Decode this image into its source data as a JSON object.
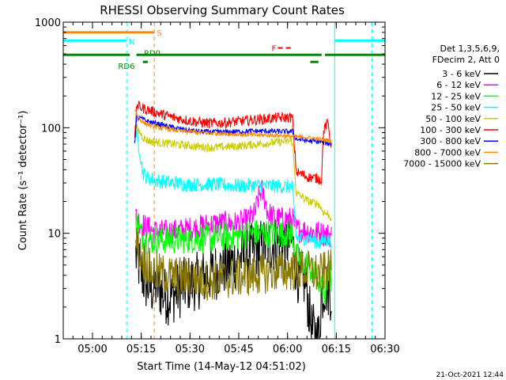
{
  "chart_data": {
    "type": "line",
    "title": "RHESSI Observing Summary Count Rates",
    "xlabel": "Start Time (14-May-12 04:51:02)",
    "ylabel": "Count Rate (s⁻¹ detector⁻¹)",
    "y_scale": "log",
    "ylim": [
      1,
      1000
    ],
    "xlim_minutes_after_0451": [
      0,
      99
    ],
    "y_ticks": [
      {
        "value": 1,
        "label": "1"
      },
      {
        "value": 10,
        "label": "10"
      },
      {
        "value": 100,
        "label": "100"
      },
      {
        "value": 1000,
        "label": "1000"
      }
    ],
    "x_ticks": [
      {
        "t": 9,
        "label": "05:00"
      },
      {
        "t": 24,
        "label": "05:15"
      },
      {
        "t": 39,
        "label": "05:30"
      },
      {
        "t": 54,
        "label": "05:45"
      },
      {
        "t": 69,
        "label": "06:00"
      },
      {
        "t": 84,
        "label": "06:15"
      },
      {
        "t": 99,
        "label": "06:30"
      }
    ],
    "legend": {
      "header": [
        "Det 1,3,5,6,9,",
        "FDecim 2, Att 0"
      ],
      "placement": "right",
      "entries": [
        {
          "label": "3 - 6 keV",
          "color": "#000000"
        },
        {
          "label": "6 - 12 keV",
          "color": "#ff00ff"
        },
        {
          "label": "12 - 25 keV",
          "color": "#00ff00"
        },
        {
          "label": "25 - 50 keV",
          "color": "#00ffff"
        },
        {
          "label": "50 - 100 keV",
          "color": "#cccc00"
        },
        {
          "label": "100 - 300 keV",
          "color": "#ff0000"
        },
        {
          "label": "300 - 800 keV",
          "color": "#0000ff"
        },
        {
          "label": "800 - 7000 keV",
          "color": "#ff8800"
        },
        {
          "label": "7000 - 15000 keV",
          "color": "#887700"
        }
      ]
    },
    "series": [
      {
        "name": "3 - 6 keV",
        "color": "#000000",
        "points": [
          [
            22.3,
            6.2
          ],
          [
            23.5,
            4.8
          ],
          [
            25,
            3.5
          ],
          [
            27,
            3.0
          ],
          [
            29,
            3.2
          ],
          [
            31,
            2.6
          ],
          [
            33,
            2.5
          ],
          [
            35,
            2.8
          ],
          [
            38,
            3.3
          ],
          [
            41,
            3.5
          ],
          [
            44,
            3.9
          ],
          [
            47,
            4.4
          ],
          [
            50,
            4.9
          ],
          [
            53,
            5.5
          ],
          [
            56,
            6.2
          ],
          [
            59,
            6.9
          ],
          [
            62,
            7.6
          ],
          [
            65,
            8.0
          ],
          [
            68,
            8.1
          ],
          [
            70.5,
            8.3
          ],
          [
            71.7,
            4.5
          ],
          [
            73,
            3.6
          ],
          [
            74.5,
            3.6
          ],
          [
            75.5,
            2.0
          ],
          [
            76.5,
            1.2
          ],
          [
            78.5,
            1.0
          ],
          [
            79.5,
            2.5
          ],
          [
            80.5,
            3.2
          ],
          [
            81.5,
            3.0
          ],
          [
            82.5,
            2.7
          ]
        ]
      },
      {
        "name": "6 - 12 keV",
        "color": "#ff00ff",
        "points": [
          [
            22.3,
            14.5
          ],
          [
            23.8,
            12.5
          ],
          [
            26,
            11.2
          ],
          [
            28,
            10.4
          ],
          [
            32,
            10.3
          ],
          [
            36,
            10.6
          ],
          [
            40,
            11.1
          ],
          [
            44,
            11.9
          ],
          [
            48,
            12.4
          ],
          [
            52,
            12.3
          ],
          [
            55,
            12.6
          ],
          [
            57,
            13.5
          ],
          [
            59,
            15.5
          ],
          [
            60,
            21
          ],
          [
            61,
            26
          ],
          [
            62,
            21
          ],
          [
            63,
            15.5
          ],
          [
            65,
            14.0
          ],
          [
            67,
            13.6
          ],
          [
            70.5,
            13.6
          ],
          [
            71.7,
            10.8
          ],
          [
            75.5,
            10.5
          ],
          [
            79,
            10.0
          ],
          [
            82.5,
            9.5
          ]
        ]
      },
      {
        "name": "12 - 25 keV",
        "color": "#00ff00",
        "points": [
          [
            22.3,
            13.5
          ],
          [
            23.8,
            9.8
          ],
          [
            26,
            8.6
          ],
          [
            30,
            8.7
          ],
          [
            34,
            8.7
          ],
          [
            38,
            8.8
          ],
          [
            42,
            8.9
          ],
          [
            46,
            9.0
          ],
          [
            50,
            9.3
          ],
          [
            54,
            9.5
          ],
          [
            58,
            10.0
          ],
          [
            62,
            10.0
          ],
          [
            66,
            10.0
          ],
          [
            70.5,
            10.0
          ],
          [
            71.7,
            6.0
          ],
          [
            75.5,
            4.9
          ],
          [
            78.5,
            3.6
          ],
          [
            80.5,
            2.5
          ],
          [
            81.5,
            4.5
          ],
          [
            82.5,
            3.8
          ]
        ]
      },
      {
        "name": "25 - 50 keV",
        "color": "#00ffff",
        "points": [
          [
            22.3,
            92
          ],
          [
            23.5,
            62
          ],
          [
            24.5,
            38
          ],
          [
            26,
            33
          ],
          [
            30,
            31
          ],
          [
            34,
            30
          ],
          [
            38,
            29
          ],
          [
            42,
            29
          ],
          [
            46,
            29
          ],
          [
            50,
            28.5
          ],
          [
            54,
            28
          ],
          [
            58,
            28.5
          ],
          [
            62,
            28
          ],
          [
            66,
            28
          ],
          [
            70.5,
            27.5
          ],
          [
            71.7,
            9.0
          ],
          [
            75.5,
            9.0
          ],
          [
            79,
            8.0
          ],
          [
            80.5,
            8.8
          ],
          [
            82.5,
            8.5
          ]
        ]
      },
      {
        "name": "50 - 100 keV",
        "color": "#cccc00",
        "points": [
          [
            22.3,
            102
          ],
          [
            23.5,
            91
          ],
          [
            25,
            78
          ],
          [
            27,
            74
          ],
          [
            30,
            72
          ],
          [
            34,
            70
          ],
          [
            38,
            68
          ],
          [
            42,
            66
          ],
          [
            46,
            65
          ],
          [
            50,
            66
          ],
          [
            54,
            67
          ],
          [
            58,
            69
          ],
          [
            62,
            71
          ],
          [
            66,
            73
          ],
          [
            70.5,
            75
          ],
          [
            71.7,
            24
          ],
          [
            75.5,
            20
          ],
          [
            78.5,
            19
          ],
          [
            80,
            16
          ],
          [
            81.5,
            15
          ],
          [
            82.5,
            14
          ]
        ]
      },
      {
        "name": "100 - 300 keV",
        "color": "#ff0000",
        "points": [
          [
            22,
            75
          ],
          [
            22.6,
            165
          ],
          [
            24,
            155
          ],
          [
            26,
            148
          ],
          [
            30,
            135
          ],
          [
            34,
            125
          ],
          [
            38,
            118
          ],
          [
            42,
            112
          ],
          [
            46,
            110
          ],
          [
            50,
            112
          ],
          [
            54,
            115
          ],
          [
            58,
            118
          ],
          [
            62,
            121
          ],
          [
            66,
            124
          ],
          [
            70.5,
            125
          ],
          [
            71.7,
            38
          ],
          [
            75.5,
            34
          ],
          [
            78.5,
            33
          ],
          [
            79.5,
            32
          ],
          [
            80,
            90
          ],
          [
            80.8,
            105
          ],
          [
            81.5,
            110
          ],
          [
            82.5,
            65
          ]
        ]
      },
      {
        "name": "300 - 800 keV",
        "color": "#0000ff",
        "points": [
          [
            22,
            75
          ],
          [
            22.6,
            125
          ],
          [
            24,
            122
          ],
          [
            26,
            115
          ],
          [
            30,
            107
          ],
          [
            34,
            100
          ],
          [
            38,
            95
          ],
          [
            42,
            92
          ],
          [
            46,
            91
          ],
          [
            50,
            91
          ],
          [
            54,
            92
          ],
          [
            58,
            93
          ],
          [
            62,
            93
          ],
          [
            66,
            92
          ],
          [
            70.5,
            92
          ],
          [
            71.7,
            78
          ],
          [
            75.5,
            75
          ],
          [
            78.5,
            74
          ],
          [
            80.5,
            72
          ],
          [
            82.5,
            70
          ]
        ]
      },
      {
        "name": "800 - 7000 keV",
        "color": "#ff8800",
        "points": [
          [
            22,
            150
          ],
          [
            23,
            125
          ],
          [
            25,
            110
          ],
          [
            28,
            102
          ],
          [
            32,
            97
          ],
          [
            36,
            93
          ],
          [
            40,
            91
          ],
          [
            44,
            89
          ],
          [
            48,
            88
          ],
          [
            52,
            87
          ],
          [
            56,
            86
          ],
          [
            60,
            85
          ],
          [
            64,
            85
          ],
          [
            68,
            84
          ],
          [
            72,
            82
          ],
          [
            76,
            80
          ],
          [
            80,
            77
          ],
          [
            82.5,
            75
          ]
        ]
      },
      {
        "name": "7000 - 15000 keV",
        "color": "#887700",
        "points": [
          [
            22.3,
            8.3
          ],
          [
            23.5,
            6.5
          ],
          [
            25,
            5.5
          ],
          [
            27,
            4.4
          ],
          [
            30,
            4.1
          ],
          [
            34,
            3.9
          ],
          [
            38,
            3.8
          ],
          [
            42,
            3.7
          ],
          [
            46,
            3.6
          ],
          [
            50,
            3.7
          ],
          [
            54,
            3.9
          ],
          [
            58,
            4.0
          ],
          [
            62,
            4.2
          ],
          [
            66,
            4.4
          ],
          [
            70.5,
            4.5
          ],
          [
            71.7,
            4.4
          ],
          [
            75.5,
            4.4
          ],
          [
            78.5,
            4.1
          ],
          [
            80.5,
            4.3
          ],
          [
            82.5,
            4.5
          ]
        ]
      }
    ],
    "state_bars": [
      {
        "name": "S",
        "label": "S",
        "color": "#ff8800",
        "y": 800,
        "segments": [
          [
            0,
            28
          ]
        ]
      },
      {
        "name": "N",
        "label": "N",
        "color": "#00ffff",
        "y": 670,
        "segments": [
          [
            0,
            19.5
          ],
          [
            83.5,
            99
          ]
        ]
      },
      {
        "name": "F",
        "label": "F",
        "color": "#ff0000",
        "y": 570,
        "segments": [
          [
            66,
            67.5
          ],
          [
            68.5,
            70
          ]
        ]
      },
      {
        "name": "RD0",
        "label": "RD0",
        "color": "#008800",
        "y": 490,
        "segments": [
          [
            0,
            20.5
          ],
          [
            22.5,
            79.5
          ],
          [
            80.5,
            99
          ]
        ]
      },
      {
        "name": "RD6",
        "label": "RD6",
        "color": "#008800",
        "y": 420,
        "segments": [
          [
            24.5,
            26
          ],
          [
            76,
            78.5
          ]
        ]
      }
    ],
    "vertical_markers": [
      {
        "t": 0,
        "color": "#00ffff"
      },
      {
        "t": 19.5,
        "color": "#00ffff",
        "dashed": true
      },
      {
        "t": 28,
        "color": "#ff8800",
        "dashed": true
      },
      {
        "t": 83.5,
        "color": "#00ffff",
        "dashed": false
      },
      {
        "t": 95,
        "color": "#00ffff",
        "dashed": true
      }
    ]
  },
  "footer": {
    "timestamp": "21-Oct-2021 12:44"
  }
}
